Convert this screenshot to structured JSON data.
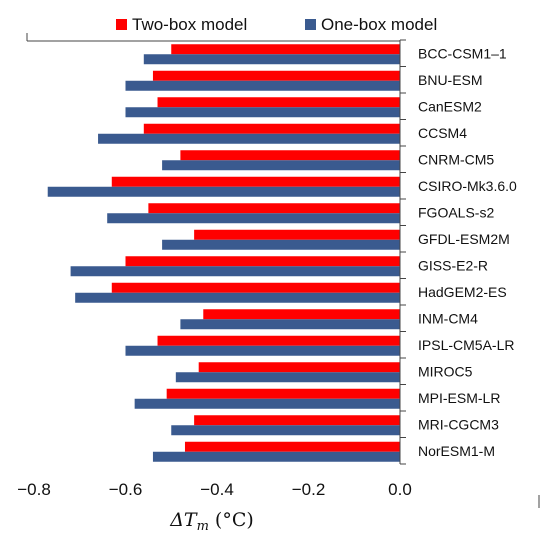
{
  "chart_data": {
    "type": "bar",
    "orientation": "horizontal",
    "title": "",
    "xlabel": "ΔT_m (°C)",
    "xlabel_parts": {
      "symbol": "ΔT",
      "subscript": "m",
      "unit": "(°C)"
    },
    "ylabel": "",
    "xlim": [
      -0.8,
      0.0
    ],
    "xticks": [
      -0.8,
      -0.6,
      -0.4,
      -0.2,
      0.0
    ],
    "xtick_labels": [
      "−0.8",
      "−0.6",
      "−0.4",
      "−0.2",
      "0.0"
    ],
    "grid": false,
    "legend_position": "top",
    "categories": [
      "BCC-CSM1–1",
      "BNU-ESM",
      "CanESM2",
      "CCSM4",
      "CNRM-CM5",
      "CSIRO-Mk3.6.0",
      "FGOALS-s2",
      "GFDL-ESM2M",
      "GISS-E2-R",
      "HadGEM2-ES",
      "INM-CM4",
      "IPSL-CM5A-LR",
      "MIROC5",
      "MPI-ESM-LR",
      "MRI-CGCM3",
      "NorESM1-M"
    ],
    "series": [
      {
        "name": "Two-box model",
        "color": "#ff0000",
        "values": [
          -0.5,
          -0.54,
          -0.53,
          -0.56,
          -0.48,
          -0.63,
          -0.55,
          -0.45,
          -0.6,
          -0.63,
          -0.43,
          -0.53,
          -0.44,
          -0.51,
          -0.45,
          -0.47
        ]
      },
      {
        "name": "One-box model",
        "color": "#3a5a8f",
        "values": [
          -0.56,
          -0.6,
          -0.6,
          -0.66,
          -0.52,
          -0.77,
          -0.64,
          -0.52,
          -0.72,
          -0.71,
          -0.48,
          -0.6,
          -0.49,
          -0.58,
          -0.5,
          -0.54
        ]
      }
    ]
  }
}
